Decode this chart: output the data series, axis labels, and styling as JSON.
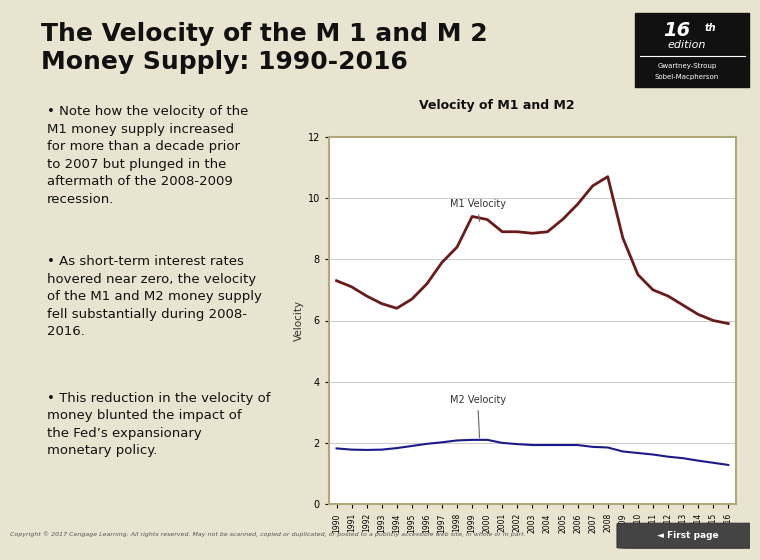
{
  "title_main": "The Velocity of the M 1 and M 2\nMoney Supply: 1990-2016",
  "chart_title": "Velocity of M1 and M2",
  "ylabel": "Velocity",
  "years": [
    1990,
    1991,
    1992,
    1993,
    1994,
    1995,
    1996,
    1997,
    1998,
    1999,
    2000,
    2001,
    2002,
    2003,
    2004,
    2005,
    2006,
    2007,
    2008,
    2009,
    2010,
    2011,
    2012,
    2013,
    2014,
    2015,
    2016
  ],
  "m1_velocity": [
    7.3,
    7.1,
    6.8,
    6.55,
    6.4,
    6.7,
    7.2,
    7.9,
    8.4,
    9.4,
    9.3,
    8.9,
    8.9,
    8.85,
    8.9,
    9.3,
    9.8,
    10.4,
    10.7,
    8.7,
    7.5,
    7.0,
    6.8,
    6.5,
    6.2,
    6.0,
    5.9
  ],
  "m2_velocity": [
    1.82,
    1.78,
    1.77,
    1.78,
    1.83,
    1.9,
    1.97,
    2.02,
    2.08,
    2.1,
    2.1,
    2.0,
    1.96,
    1.93,
    1.93,
    1.93,
    1.93,
    1.87,
    1.85,
    1.72,
    1.67,
    1.62,
    1.55,
    1.5,
    1.42,
    1.35,
    1.28
  ],
  "m1_color": "#6b1a1a",
  "m2_color": "#1a1a8b",
  "ylim": [
    0,
    12
  ],
  "yticks": [
    0,
    2,
    4,
    6,
    8,
    10,
    12
  ],
  "bullet_points": [
    "Note how the velocity of the\nM1 money supply increased\nfor more than a decade prior\nto 2007 but plunged in the\naftermath of the 2008-2009\nrecession.",
    "As short-term interest rates\nhovered near zero, the velocity\nof the M1 and M2 money supply\nfell substantially during 2008-\n2016.",
    "This reduction in the velocity of\nmoney blunted the impact of\nthe Fed’s expansionary\nmonetary policy."
  ],
  "footer_text": "Copyright © 2017 Cengage Learning. All rights reserved. May not be scanned, copied or duplicated, or posted to a publicly accessible web site, in whole or in part.",
  "bg_content": "#e8e4d0",
  "bg_title": "#ffffff",
  "bg_chart_outer": "#e8d9a0",
  "bg_chart_inner": "#ffffff",
  "title_fontsize": 18,
  "bullet_fontsize": 9.5,
  "chart_title_fontsize": 9
}
